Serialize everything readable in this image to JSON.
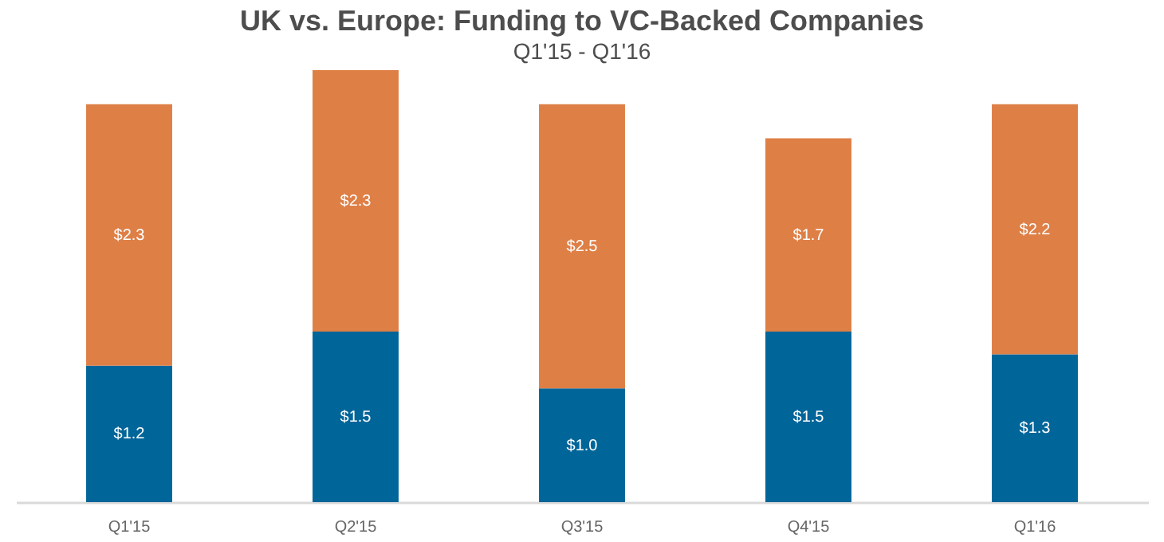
{
  "chart_data": {
    "type": "bar",
    "title": "UK vs. Europe: Funding to VC-Backed Companies",
    "subtitle": "Q1'15 - Q1'16",
    "categories": [
      "Q1'15",
      "Q2'15",
      "Q3'15",
      "Q4'15",
      "Q1'16"
    ],
    "stacked": true,
    "series": [
      {
        "color": "#006599",
        "values": [
          1.2,
          1.5,
          1.0,
          1.5,
          1.3
        ],
        "value_labels": [
          "$1.2",
          "$1.5",
          "$1.0",
          "$1.5",
          "$1.3"
        ]
      },
      {
        "color": "#de7f46",
        "values": [
          2.3,
          2.3,
          2.5,
          1.7,
          2.2
        ],
        "value_labels": [
          "$2.3",
          "$2.3",
          "$2.5",
          "$1.7",
          "$2.2"
        ]
      }
    ]
  }
}
